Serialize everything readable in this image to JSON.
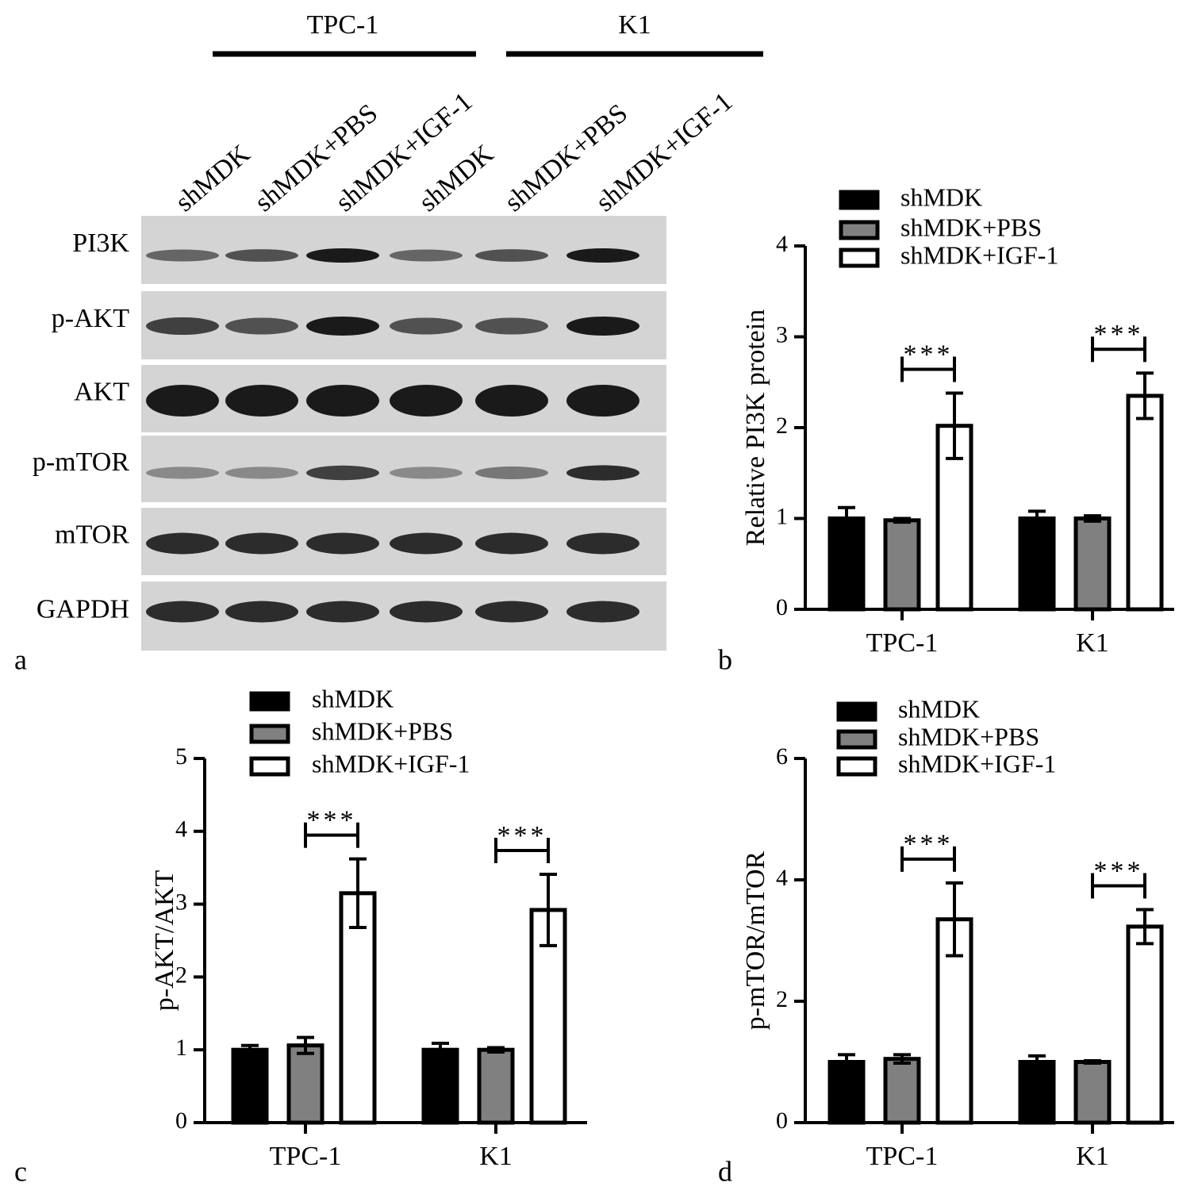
{
  "blot": {
    "panel_label": "a",
    "groups": [
      "TPC-1",
      "K1"
    ],
    "lanes": [
      "shMDK",
      "shMDK+PBS",
      "shMDK+IGF-1",
      "shMDK",
      "shMDK+PBS",
      "shMDK+IGF-1"
    ],
    "rows": [
      "PI3K",
      "p-AKT",
      "AKT",
      "p-mTOR",
      "mTOR",
      "GAPDH"
    ]
  },
  "chart_data": [
    {
      "type": "bar",
      "panel_label": "b",
      "y_label": "Relative PI3K protein",
      "categories": [
        "TPC-1",
        "K1"
      ],
      "series": [
        {
          "name": "shMDK",
          "color": "#000000",
          "values": [
            1.0,
            1.0
          ],
          "errors": [
            0.12,
            0.08
          ]
        },
        {
          "name": "shMDK+PBS",
          "color": "#808080",
          "values": [
            0.98,
            1.0
          ],
          "errors": [
            0.02,
            0.03
          ]
        },
        {
          "name": "shMDK+IGF-1",
          "color": "#ffffff",
          "values": [
            2.02,
            2.35
          ],
          "errors": [
            0.36,
            0.25
          ]
        }
      ],
      "significance": [
        "***",
        "***"
      ],
      "ylim": [
        0,
        4
      ],
      "yticks": [
        0,
        1,
        2,
        3,
        4
      ]
    },
    {
      "type": "bar",
      "panel_label": "c",
      "y_label": "p-AKT/AKT",
      "categories": [
        "TPC-1",
        "K1"
      ],
      "series": [
        {
          "name": "shMDK",
          "color": "#000000",
          "values": [
            1.0,
            1.0
          ],
          "errors": [
            0.06,
            0.09
          ]
        },
        {
          "name": "shMDK+PBS",
          "color": "#808080",
          "values": [
            1.06,
            1.0
          ],
          "errors": [
            0.11,
            0.03
          ]
        },
        {
          "name": "shMDK+IGF-1",
          "color": "#ffffff",
          "values": [
            3.15,
            2.92
          ],
          "errors": [
            0.47,
            0.49
          ]
        }
      ],
      "significance": [
        "***",
        "***"
      ],
      "ylim": [
        0,
        5
      ],
      "yticks": [
        0,
        1,
        2,
        3,
        4,
        5
      ]
    },
    {
      "type": "bar",
      "panel_label": "d",
      "y_label": "p-mTOR/mTOR",
      "categories": [
        "TPC-1",
        "K1"
      ],
      "series": [
        {
          "name": "shMDK",
          "color": "#000000",
          "values": [
            1.0,
            1.0
          ],
          "errors": [
            0.12,
            0.1
          ]
        },
        {
          "name": "shMDK+PBS",
          "color": "#808080",
          "values": [
            1.05,
            1.0
          ],
          "errors": [
            0.07,
            0.02
          ]
        },
        {
          "name": "shMDK+IGF-1",
          "color": "#ffffff",
          "values": [
            3.35,
            3.23
          ],
          "errors": [
            0.6,
            0.28
          ]
        }
      ],
      "significance": [
        "***",
        "***"
      ],
      "ylim": [
        0,
        6
      ],
      "yticks": [
        0,
        2,
        4,
        6
      ]
    }
  ]
}
